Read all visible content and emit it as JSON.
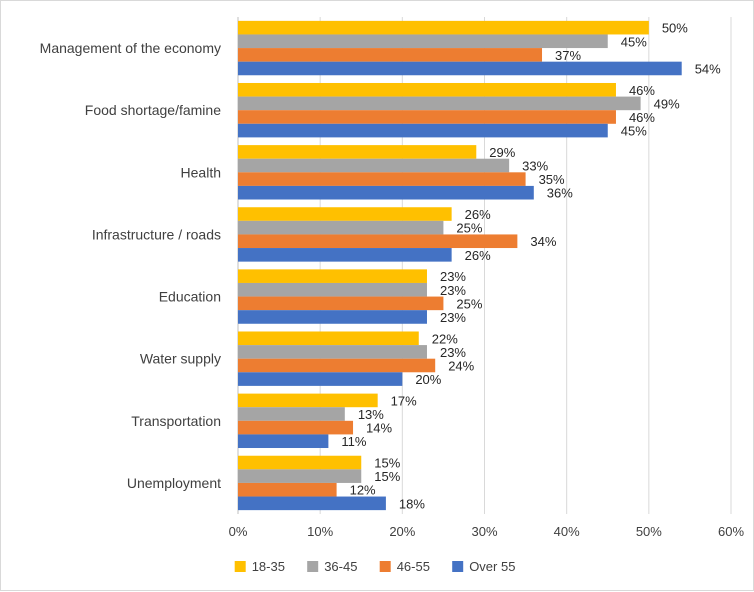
{
  "chart_data": {
    "type": "bar",
    "orientation": "horizontal",
    "categories": [
      "Management of the economy",
      "Food shortage/famine",
      "Health",
      "Infrastructure / roads",
      "Education",
      "Water supply",
      "Transportation",
      "Unemployment"
    ],
    "series": [
      {
        "name": "18-35",
        "color": "#FFC000",
        "values": [
          50,
          46,
          29,
          26,
          23,
          22,
          17,
          15
        ]
      },
      {
        "name": "36-45",
        "color": "#A5A5A5",
        "values": [
          45,
          49,
          33,
          25,
          23,
          23,
          13,
          15
        ]
      },
      {
        "name": "46-55",
        "color": "#ED7D31",
        "values": [
          37,
          46,
          35,
          34,
          25,
          24,
          14,
          12
        ]
      },
      {
        "name": "Over 55",
        "color": "#4472C4",
        "values": [
          54,
          45,
          36,
          26,
          23,
          20,
          11,
          18
        ]
      }
    ],
    "xlim": [
      0,
      60
    ],
    "x_ticks": [
      0,
      10,
      20,
      30,
      40,
      50,
      60
    ],
    "value_suffix": "%",
    "grid": "vertical",
    "legend_position": "bottom",
    "title": "",
    "xlabel": "",
    "ylabel": ""
  }
}
